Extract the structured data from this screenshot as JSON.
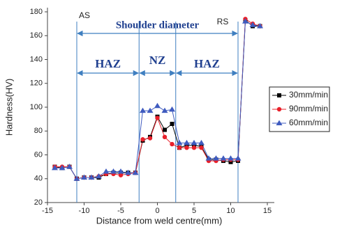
{
  "chart_data": {
    "type": "line",
    "x_label": "Distance from weld centre(mm)",
    "y_label": "Hardness(HV)",
    "x": [
      -14,
      -13,
      -12,
      -11,
      -10,
      -9,
      -8,
      -7,
      -6,
      -5,
      -4,
      -3,
      -2,
      -1,
      0,
      1,
      2,
      3,
      4,
      5,
      6,
      7,
      8,
      9,
      10,
      11,
      12,
      13,
      14
    ],
    "series": [
      {
        "name": "30mm/min",
        "color": "#000000",
        "marker": "square",
        "values": [
          50,
          49,
          50,
          40,
          41,
          41,
          41,
          44,
          45,
          45,
          45,
          45,
          72,
          75,
          92,
          81,
          86,
          66,
          68,
          68,
          67,
          56,
          56,
          55,
          54,
          55,
          173,
          168,
          168
        ]
      },
      {
        "name": "90mm/min",
        "color": "#e8202a",
        "marker": "circle",
        "values": [
          50,
          50,
          50,
          40,
          41,
          41,
          42,
          44,
          44,
          43,
          44,
          45,
          73,
          74,
          91,
          75,
          69,
          66,
          66,
          66,
          66,
          55,
          55,
          56,
          56,
          56,
          174,
          170,
          168
        ]
      },
      {
        "name": "60mm/min",
        "color": "#3f5bbf",
        "marker": "triangle",
        "values": [
          49,
          49,
          50,
          40,
          41,
          41,
          42,
          46,
          46,
          46,
          45,
          45,
          97,
          97,
          101,
          97,
          98,
          70,
          70,
          70,
          70,
          57,
          57,
          57,
          57,
          57,
          172,
          169,
          168
        ]
      }
    ],
    "reference_lines": [
      -11,
      -2.5,
      2.5,
      11
    ],
    "annotations": {
      "as": "AS",
      "rs": "RS",
      "shoulder": "Shoulder diameter",
      "haz_left": "HAZ",
      "nz": "NZ",
      "haz_right": "HAZ"
    },
    "xlim": [
      -15,
      15
    ],
    "xticks": [
      -15,
      -10,
      -5,
      0,
      5,
      10,
      15
    ],
    "ylim": [
      20,
      180
    ],
    "yticks": [
      20,
      40,
      60,
      80,
      100,
      120,
      140,
      160,
      180
    ],
    "legend": "right",
    "grid": false
  }
}
